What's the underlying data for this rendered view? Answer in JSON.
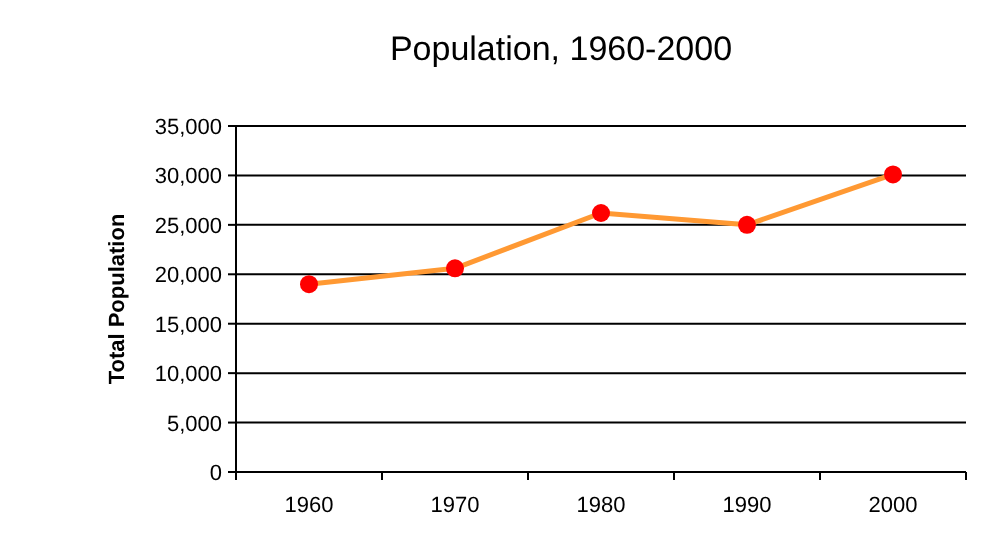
{
  "chart_data": {
    "type": "line",
    "title": "Population, 1960-2000",
    "ylabel": "Total Population",
    "categories": [
      "1960",
      "1970",
      "1980",
      "1990",
      "2000"
    ],
    "series": [
      {
        "color": "#ff9933",
        "colors": [
          "#ff0000",
          "#ff0000",
          "#ff0000",
          "#ff0000",
          "#ff0000"
        ],
        "values": [
          19000,
          20600,
          26200,
          25000,
          30100
        ]
      }
    ],
    "marker": "circle",
    "ylim": [
      0,
      35000
    ],
    "yticks": [
      {
        "value": 0,
        "label": "0"
      },
      {
        "value": 5000,
        "label": "5,000"
      },
      {
        "value": 10000,
        "label": "10,000"
      },
      {
        "value": 15000,
        "label": "15,000"
      },
      {
        "value": 20000,
        "label": "20,000"
      },
      {
        "value": 25000,
        "label": "25,000"
      },
      {
        "value": 30000,
        "label": "30,000"
      },
      {
        "value": 35000,
        "label": "35,000"
      }
    ],
    "grid": "y"
  }
}
